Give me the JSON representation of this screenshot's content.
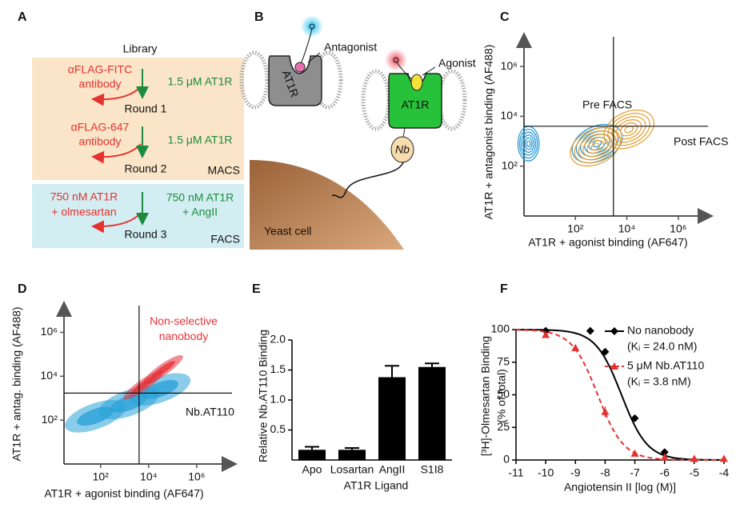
{
  "panel_a": {
    "label": "A",
    "title": "Library",
    "steps": [
      {
        "left": [
          "αFLAG-FITC",
          "antibody"
        ],
        "right": [
          "1.5 μM AT1R"
        ],
        "round": "Round 1"
      },
      {
        "left": [
          "αFLAG-647",
          "antibody"
        ],
        "right": [
          "1.5 μM AT1R"
        ],
        "round": "Round 2"
      },
      {
        "left": [
          "750 nM AT1R",
          "+ olmesartan"
        ],
        "right": [
          "750 nM AT1R",
          "+ AngII"
        ],
        "round": "Round 3"
      }
    ],
    "stages": [
      "MACS",
      "FACS"
    ]
  },
  "panel_b": {
    "label": "B",
    "antagonist": "Antagonist",
    "agonist": "Agonist",
    "receptor_left": "AT1R",
    "receptor_right": "AT1R",
    "nanobody": "Nb",
    "cell": "Yeast cell"
  },
  "chart_data": [
    {
      "type": "contour",
      "label": "C",
      "x_label": "AT1R + agonist binding (AF647)",
      "y_label": "AT1R + antagonist binding (AF488)",
      "log_x": true,
      "log_y": true,
      "xlim": [
        1,
        10000000
      ],
      "ylim": [
        1,
        10000000
      ],
      "xticks": [
        {
          "value": 100,
          "label": "10²"
        },
        {
          "value": 10000,
          "label": "10⁴"
        },
        {
          "value": 1000000,
          "label": "10⁶"
        }
      ],
      "yticks": [
        {
          "value": 100,
          "label": "10²"
        },
        {
          "value": 10000,
          "label": "10⁴"
        },
        {
          "value": 1000000,
          "label": "10⁶"
        }
      ],
      "gate": {
        "x": 3000,
        "y": 4000
      },
      "series": [
        {
          "name": "Pre FACS",
          "color": "#2a9bd6",
          "x": [
            1.5,
            700
          ],
          "y": [
            800,
            800
          ]
        },
        {
          "name": "Post FACS",
          "color": "#e8a23a",
          "x": [
            600,
            12000
          ],
          "y": [
            600,
            3000
          ]
        }
      ]
    },
    {
      "type": "scatter",
      "label": "D",
      "x_label": "AT1R + agonist binding (AF647)",
      "y_label": "AT1R + antag. binding (AF488)",
      "log_x": true,
      "log_y": true,
      "xlim": [
        3,
        20000000
      ],
      "ylim": [
        1,
        10000000
      ],
      "xticks": [
        {
          "value": 100,
          "label": "10²"
        },
        {
          "value": 10000,
          "label": "10⁴"
        },
        {
          "value": 1000000,
          "label": "10⁶"
        }
      ],
      "yticks": [
        {
          "value": 100,
          "label": "10²"
        },
        {
          "value": 10000,
          "label": "10⁴"
        },
        {
          "value": 1000000,
          "label": "10⁶"
        }
      ],
      "gate": {
        "x": 4000,
        "y": 1700
      },
      "series": [
        {
          "name": "Nb.AT110",
          "color": "#2aa3d8",
          "x": [
            60,
            1500,
            30000
          ],
          "y": [
            150,
            600,
            2500
          ]
        },
        {
          "name": "Non-selective nanobody",
          "color": "#e8323a",
          "x": [
            6000,
            40000
          ],
          "y": [
            4000,
            20000
          ]
        }
      ]
    },
    {
      "type": "bar",
      "label": "E",
      "x_label": "AT1R Ligand",
      "y_label": "Relative Nb.AT110 Binding",
      "color": "#000000",
      "categories": [
        "Apo",
        "Losartan",
        "AngII",
        "S1I8"
      ],
      "values": [
        0.17,
        0.17,
        1.38,
        1.55
      ],
      "errors": [
        0.05,
        0.03,
        0.19,
        0.06
      ],
      "ylim": [
        0,
        2
      ],
      "yticks": [
        0.5,
        {
          "value": 1,
          "label": "1.0"
        },
        1.5,
        {
          "value": 2,
          "label": "2.0"
        }
      ]
    },
    {
      "type": "line",
      "label": "F",
      "x_label": "Angiotensin II [log (M)]",
      "y_label": [
        "[³H]-Olmesartan Binding",
        "(% of total)"
      ],
      "xlim": [
        -11,
        -4
      ],
      "xticks": [
        -11,
        -10,
        -9,
        -8,
        -7,
        -6,
        -5,
        -4
      ],
      "ylim": [
        0,
        100
      ],
      "yticks": [
        0,
        25,
        50,
        75,
        100
      ],
      "series": [
        {
          "name": "No nanobody",
          "note": "(Kᵢ = 24.0 nM)",
          "color": "#000000",
          "dashed": false,
          "marker": "diamond",
          "x": [
            -10,
            -8.5,
            -8,
            -7,
            -6
          ],
          "y": [
            99,
            99,
            83,
            32,
            6
          ],
          "errors": [
            0,
            0,
            0,
            2,
            0
          ],
          "fit_log_ic50": -7.45
        },
        {
          "name": "5 μM Nb.AT110",
          "note": "(Kᵢ = 3.8 nM)",
          "color": "#e4322f",
          "dashed": true,
          "marker": "triangle",
          "x": [
            -10,
            -9,
            -8,
            -7,
            -6,
            -5,
            -4
          ],
          "y": [
            96,
            86,
            37,
            5,
            2,
            1,
            1
          ],
          "errors": [
            2,
            0,
            4,
            0,
            0,
            0,
            0
          ],
          "fit_log_ic50": -8.25
        }
      ]
    }
  ]
}
